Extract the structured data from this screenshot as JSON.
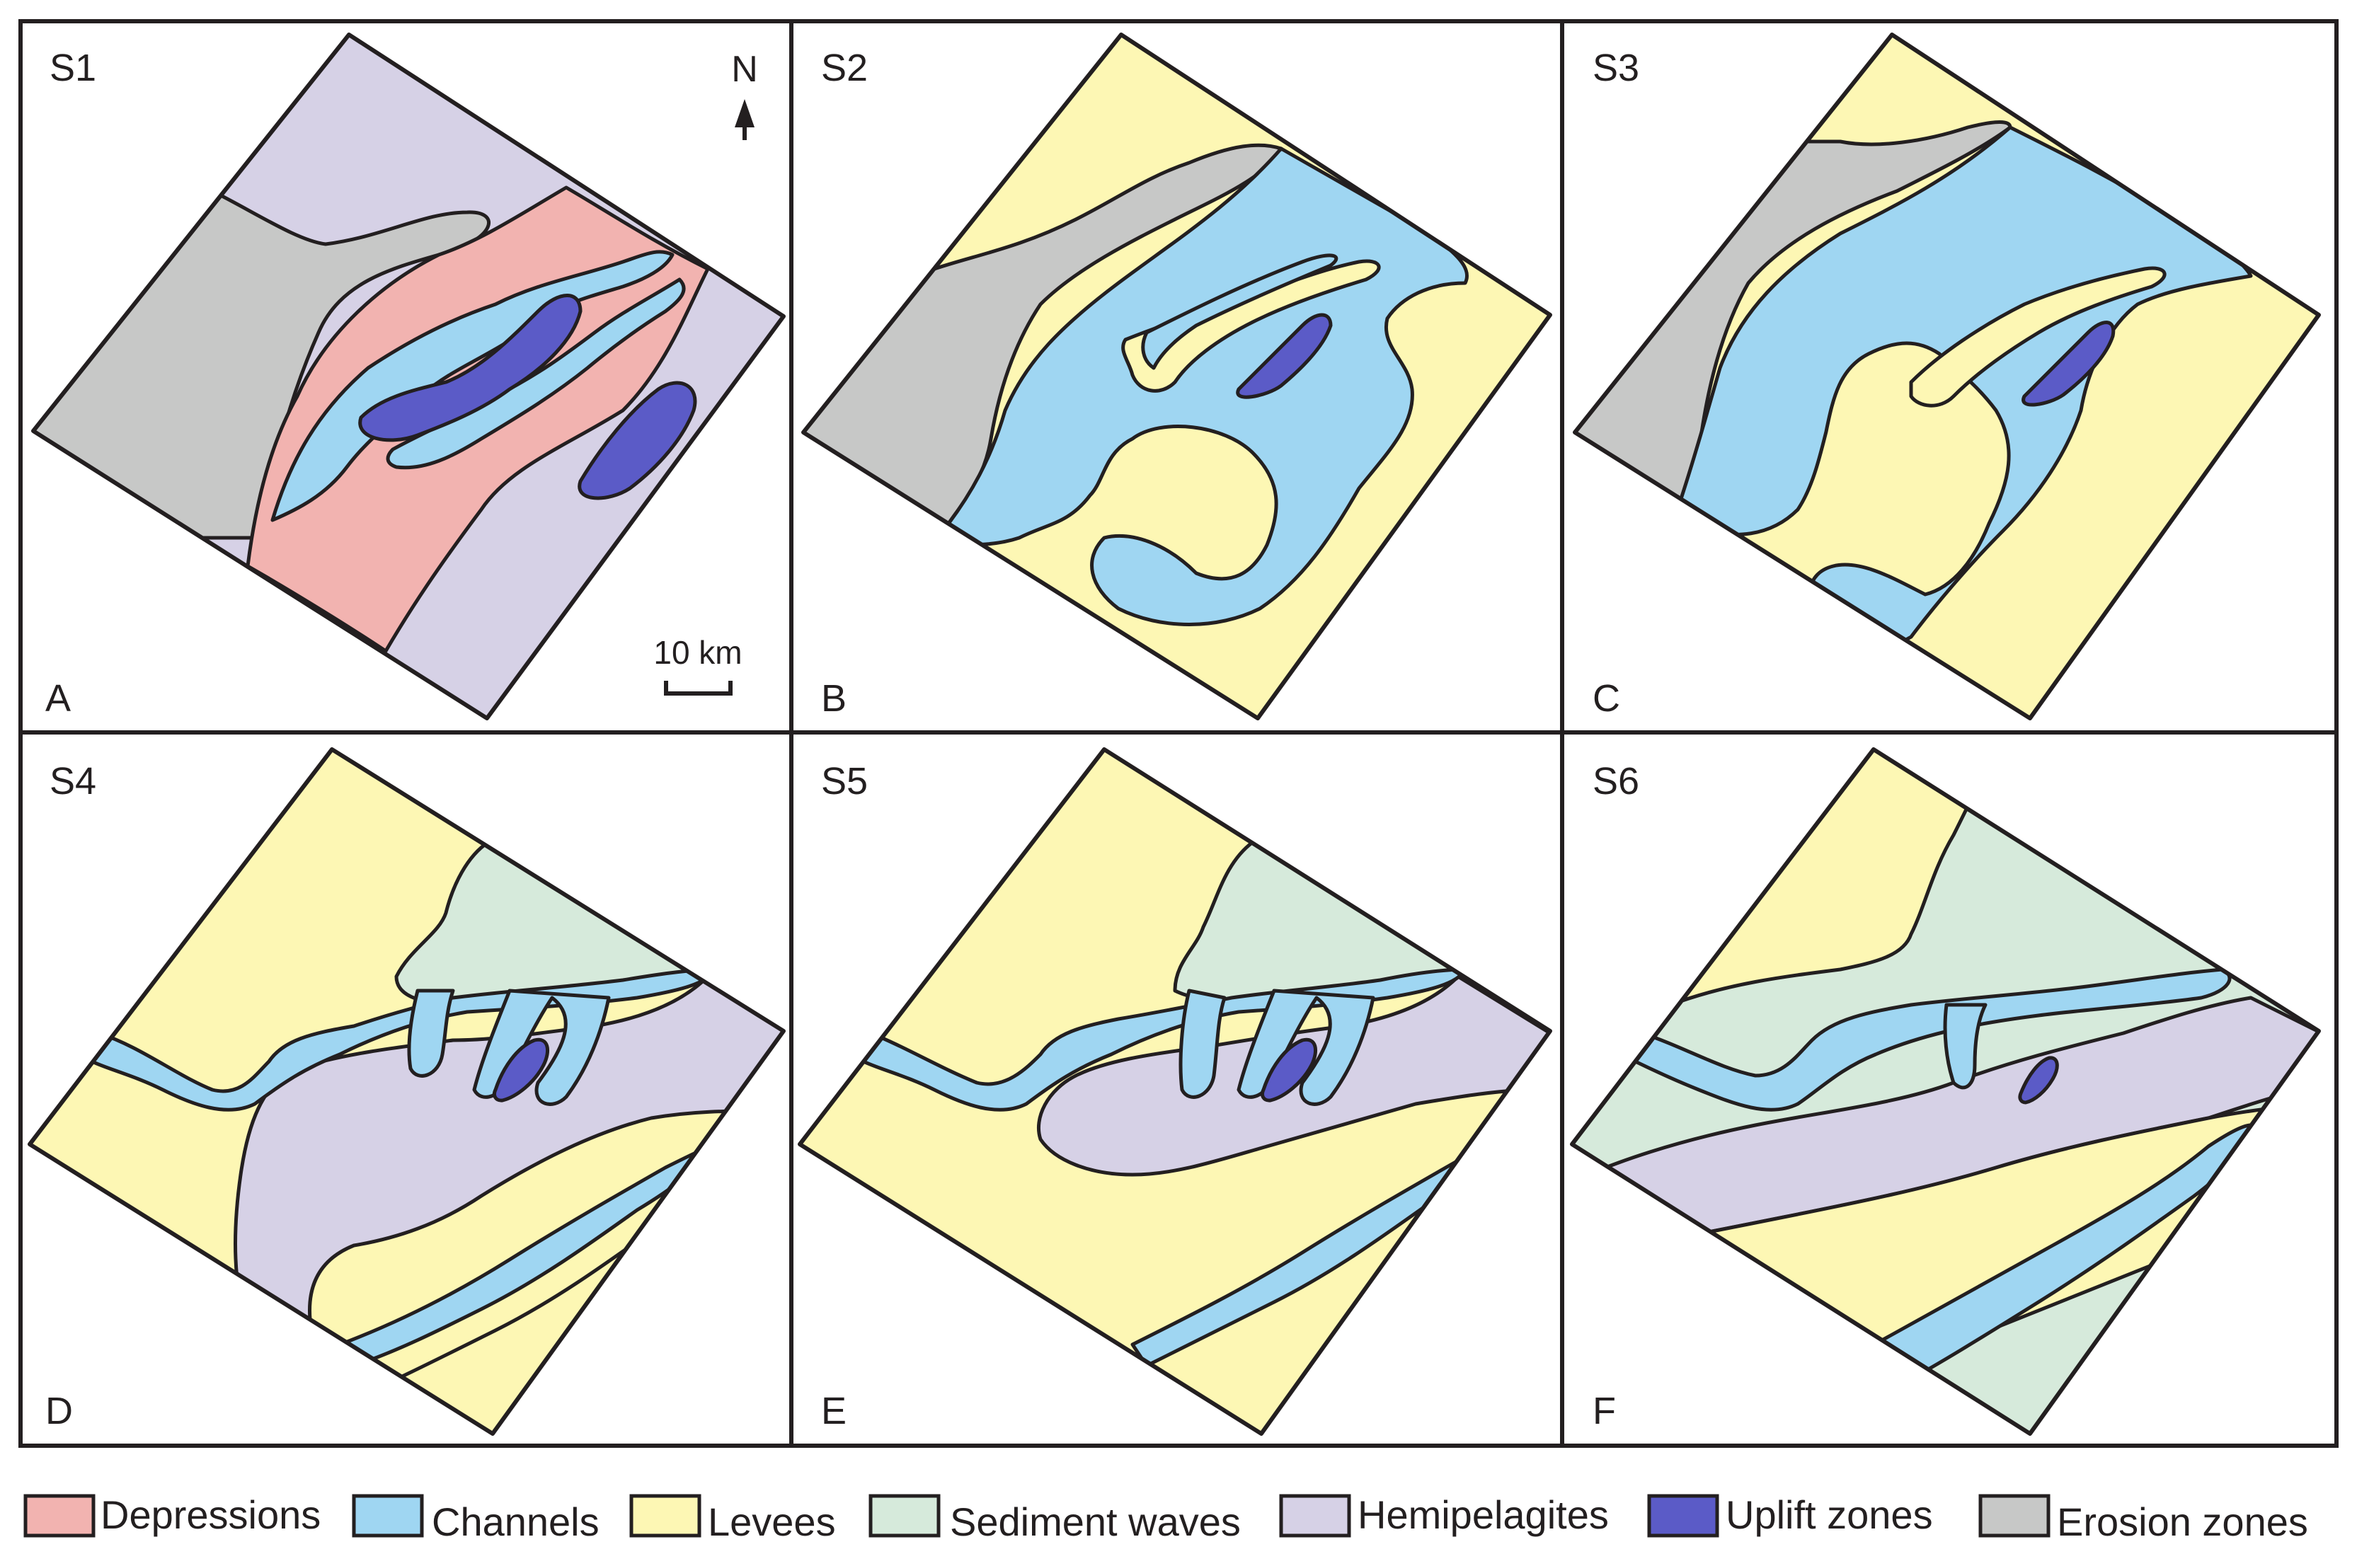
{
  "legend": [
    {
      "key": "depressions",
      "label": "Depressions",
      "color": "#f2b3b0"
    },
    {
      "key": "channels",
      "label": "Channels",
      "color": "#9fd6f2"
    },
    {
      "key": "levees",
      "label": "Levees",
      "color": "#fdf7b4"
    },
    {
      "key": "sediment_waves",
      "label": "Sediment waves",
      "color": "#d6eadb"
    },
    {
      "key": "hemipelagites",
      "label": "Hemipelagites",
      "color": "#d6d1e6"
    },
    {
      "key": "uplift_zones",
      "label": "Uplift zones",
      "color": "#5b5bc7"
    },
    {
      "key": "erosion_zones",
      "label": "Erosion zones",
      "color": "#c7c8c7"
    }
  ],
  "panels": [
    {
      "stage": "S1",
      "letter": "A"
    },
    {
      "stage": "S2",
      "letter": "B"
    },
    {
      "stage": "S3",
      "letter": "C"
    },
    {
      "stage": "S4",
      "letter": "D"
    },
    {
      "stage": "S5",
      "letter": "E"
    },
    {
      "stage": "S6",
      "letter": "F"
    }
  ],
  "north_arrow": {
    "label": "N"
  },
  "scale_bar": {
    "label": "10 km"
  }
}
